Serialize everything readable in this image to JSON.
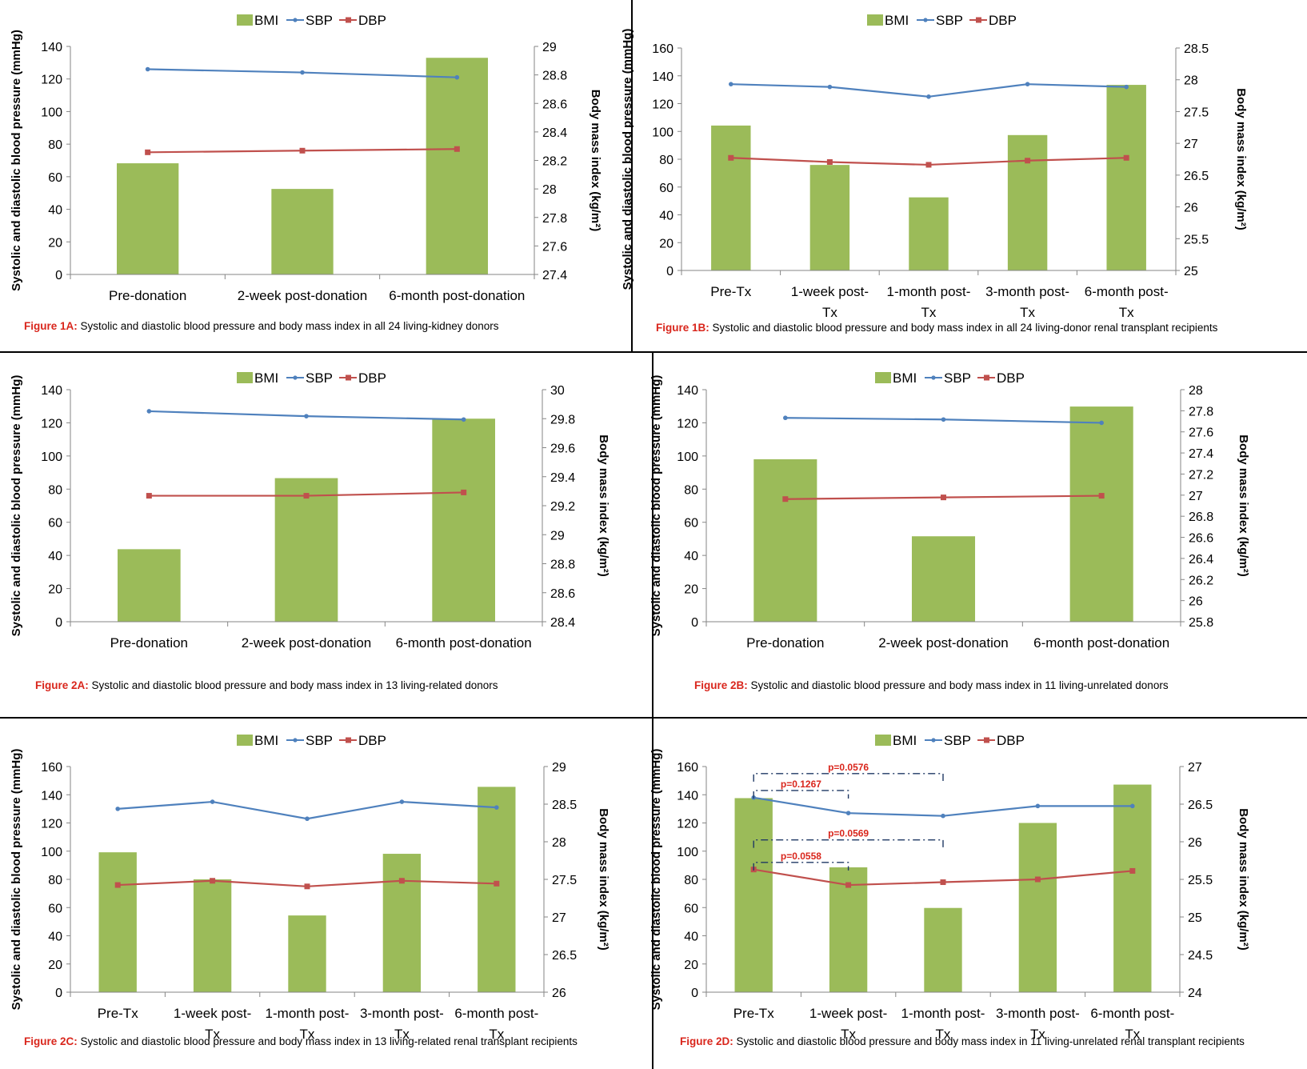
{
  "legend": {
    "bmi": "BMI",
    "sbp": "SBP",
    "dbp": "DBP"
  },
  "colors": {
    "bar": "#9bbb59",
    "sbp": "#4f81bd",
    "dbp": "#c0504d",
    "axis": "#868686",
    "grid_text": "#000000",
    "caption_prefix": "#d9261c",
    "bracket": "#1f3864",
    "pval": "#d9261c"
  },
  "chart_data": [
    {
      "id": "fig1a",
      "type": "bar+line",
      "caption_prefix": "Figure 1A:",
      "caption_text": " Systolic and diastolic blood pressure and body mass index in all 24 living-kidney donors",
      "ylabel_left": "Systolic and diastolic blood pressure (mmHg)",
      "ylabel_right": "Body mass index (kg/m²)",
      "categories": [
        [
          "Pre-donation"
        ],
        [
          "2-week post-donation"
        ],
        [
          "6-month post-donation"
        ]
      ],
      "left_axis": {
        "min": 0,
        "max": 140,
        "step": 20,
        "ticks": [
          "0",
          "20",
          "40",
          "60",
          "80",
          "100",
          "120",
          "140"
        ]
      },
      "right_axis": {
        "min": 27.4,
        "max": 29,
        "ticks": [
          "27.4",
          "27.6",
          "27.8",
          "28",
          "28.2",
          "28.4",
          "28.6",
          "28.8",
          "29"
        ]
      },
      "series": [
        {
          "name": "BMI",
          "kind": "bar",
          "axis": "right",
          "values": [
            28.18,
            28.0,
            28.92
          ]
        },
        {
          "name": "SBP",
          "kind": "line",
          "axis": "left",
          "values": [
            126,
            124,
            121
          ]
        },
        {
          "name": "DBP",
          "kind": "line",
          "axis": "left",
          "values": [
            75,
            76,
            77
          ]
        }
      ]
    },
    {
      "id": "fig1b",
      "type": "bar+line",
      "caption_prefix": "Figure 1B:",
      "caption_text": " Systolic and diastolic blood pressure and body mass index in all 24 living-donor renal transplant recipients",
      "ylabel_left": "Systolic and diastolic blood pressure (mmHg)",
      "ylabel_right": "Body mass index (kg/m²)",
      "categories": [
        [
          "Pre-Tx"
        ],
        [
          "1-week post-",
          "Tx"
        ],
        [
          "1-month post-",
          "Tx"
        ],
        [
          "3-month post-",
          "Tx"
        ],
        [
          "6-month post-",
          "Tx"
        ]
      ],
      "left_axis": {
        "min": 0,
        "max": 160,
        "step": 20,
        "ticks": [
          "0",
          "20",
          "40",
          "60",
          "80",
          "100",
          "120",
          "140",
          "160"
        ]
      },
      "right_axis": {
        "min": 25,
        "max": 28.5,
        "ticks": [
          "25",
          "25.5",
          "26",
          "26.5",
          "27",
          "27.5",
          "28",
          "28.5"
        ]
      },
      "series": [
        {
          "name": "BMI",
          "kind": "bar",
          "axis": "right",
          "values": [
            27.28,
            26.66,
            26.15,
            27.13,
            27.92
          ]
        },
        {
          "name": "SBP",
          "kind": "line",
          "axis": "left",
          "values": [
            134,
            132,
            125,
            134,
            132
          ]
        },
        {
          "name": "DBP",
          "kind": "line",
          "axis": "left",
          "values": [
            81,
            78,
            76,
            79,
            81
          ]
        }
      ]
    },
    {
      "id": "fig2a",
      "type": "bar+line",
      "caption_prefix": "Figure 2A:",
      "caption_text": " Systolic and diastolic blood pressure and body mass index in 13 living-related donors",
      "ylabel_left": "Systolic and diastolic blood pressure (mmHg)",
      "ylabel_right": "Body mass index (kg/m²)",
      "categories": [
        [
          "Pre-donation"
        ],
        [
          "2-week post-donation"
        ],
        [
          "6-month post-donation"
        ]
      ],
      "left_axis": {
        "min": 0,
        "max": 140,
        "step": 20,
        "ticks": [
          "0",
          "20",
          "40",
          "60",
          "80",
          "100",
          "120",
          "140"
        ]
      },
      "right_axis": {
        "min": 28.4,
        "max": 30,
        "ticks": [
          "28.4",
          "28.6",
          "28.8",
          "29",
          "29.2",
          "29.4",
          "29.6",
          "29.8",
          "30"
        ]
      },
      "series": [
        {
          "name": "BMI",
          "kind": "bar",
          "axis": "right",
          "values": [
            28.9,
            29.39,
            29.8
          ]
        },
        {
          "name": "SBP",
          "kind": "line",
          "axis": "left",
          "values": [
            127,
            124,
            122
          ]
        },
        {
          "name": "DBP",
          "kind": "line",
          "axis": "left",
          "values": [
            76,
            76,
            78
          ]
        }
      ]
    },
    {
      "id": "fig2b",
      "type": "bar+line",
      "caption_prefix": "Figure 2B:",
      "caption_text": " Systolic and diastolic blood pressure and body mass index in 11 living-unrelated donors",
      "ylabel_left": "Systolic and diastolic blood pressure (mmHg)",
      "ylabel_right": "Body mass index (kg/m²)",
      "categories": [
        [
          "Pre-donation"
        ],
        [
          "2-week post-donation"
        ],
        [
          "6-month post-donation"
        ]
      ],
      "left_axis": {
        "min": 0,
        "max": 140,
        "step": 20,
        "ticks": [
          "0",
          "20",
          "40",
          "60",
          "80",
          "100",
          "120",
          "140"
        ]
      },
      "right_axis": {
        "min": 25.8,
        "max": 28,
        "ticks": [
          "25.8",
          "26",
          "26.2",
          "26.4",
          "26.6",
          "26.8",
          "27",
          "27.2",
          "27.4",
          "27.6",
          "27.8",
          "28"
        ]
      },
      "series": [
        {
          "name": "BMI",
          "kind": "bar",
          "axis": "right",
          "values": [
            27.34,
            26.61,
            27.84
          ]
        },
        {
          "name": "SBP",
          "kind": "line",
          "axis": "left",
          "values": [
            123,
            122,
            120
          ]
        },
        {
          "name": "DBP",
          "kind": "line",
          "axis": "left",
          "values": [
            74,
            75,
            76
          ]
        }
      ]
    },
    {
      "id": "fig2c",
      "type": "bar+line",
      "caption_prefix": "Figure 2C:",
      "caption_text": " Systolic and diastolic blood pressure and body mass index in 13 living-related renal transplant recipients",
      "ylabel_left": "Systolic and diastolic blood pressure (mmHg)",
      "ylabel_right": "Body mass index (kg/m²)",
      "categories": [
        [
          "Pre-Tx"
        ],
        [
          "1-week post-",
          "Tx"
        ],
        [
          "1-month post-",
          "Tx"
        ],
        [
          "3-month post-",
          "Tx"
        ],
        [
          "6-month post-",
          "Tx"
        ]
      ],
      "left_axis": {
        "min": 0,
        "max": 160,
        "step": 20,
        "ticks": [
          "0",
          "20",
          "40",
          "60",
          "80",
          "100",
          "120",
          "140",
          "160"
        ]
      },
      "right_axis": {
        "min": 26,
        "max": 29,
        "ticks": [
          "26",
          "26.5",
          "27",
          "27.5",
          "28",
          "28.5",
          "29"
        ]
      },
      "series": [
        {
          "name": "BMI",
          "kind": "bar",
          "axis": "right",
          "values": [
            27.86,
            27.5,
            27.02,
            27.84,
            28.73
          ]
        },
        {
          "name": "SBP",
          "kind": "line",
          "axis": "left",
          "values": [
            130,
            135,
            123,
            135,
            131
          ]
        },
        {
          "name": "DBP",
          "kind": "line",
          "axis": "left",
          "values": [
            76,
            79,
            75,
            79,
            77
          ]
        }
      ]
    },
    {
      "id": "fig2d",
      "type": "bar+line",
      "caption_prefix": "Figure 2D:",
      "caption_text": " Systolic and diastolic blood pressure and body mass index in 11 living-unrelated renal transplant recipients",
      "ylabel_left": "Systolic and diastolic blood pressure (mmHg)",
      "ylabel_right": "Body mass index (kg/m²)",
      "categories": [
        [
          "Pre-Tx"
        ],
        [
          "1-week post-",
          "Tx"
        ],
        [
          "1-month post-",
          "Tx"
        ],
        [
          "3-month post-",
          "Tx"
        ],
        [
          "6-month post-",
          "Tx"
        ]
      ],
      "left_axis": {
        "min": 0,
        "max": 160,
        "step": 20,
        "ticks": [
          "0",
          "20",
          "40",
          "60",
          "80",
          "100",
          "120",
          "140",
          "160"
        ]
      },
      "right_axis": {
        "min": 24,
        "max": 27,
        "ticks": [
          "24",
          "24.5",
          "25",
          "25.5",
          "26",
          "26.5",
          "27"
        ]
      },
      "series": [
        {
          "name": "BMI",
          "kind": "bar",
          "axis": "right",
          "values": [
            26.58,
            25.66,
            25.12,
            26.25,
            26.76
          ]
        },
        {
          "name": "SBP",
          "kind": "line",
          "axis": "left",
          "values": [
            138,
            127,
            125,
            132,
            132
          ]
        },
        {
          "name": "DBP",
          "kind": "line",
          "axis": "left",
          "values": [
            87,
            76,
            78,
            80,
            86
          ]
        }
      ],
      "annotations": [
        {
          "label": "p=0.0576",
          "from": 0,
          "to": 2,
          "level": 155
        },
        {
          "label": "p=0.1267",
          "from": 0,
          "to": 1,
          "level": 143
        },
        {
          "label": "p=0.0569",
          "from": 0,
          "to": 2,
          "level": 108
        },
        {
          "label": "p=0.0558",
          "from": 0,
          "to": 1,
          "level": 92
        }
      ]
    }
  ]
}
